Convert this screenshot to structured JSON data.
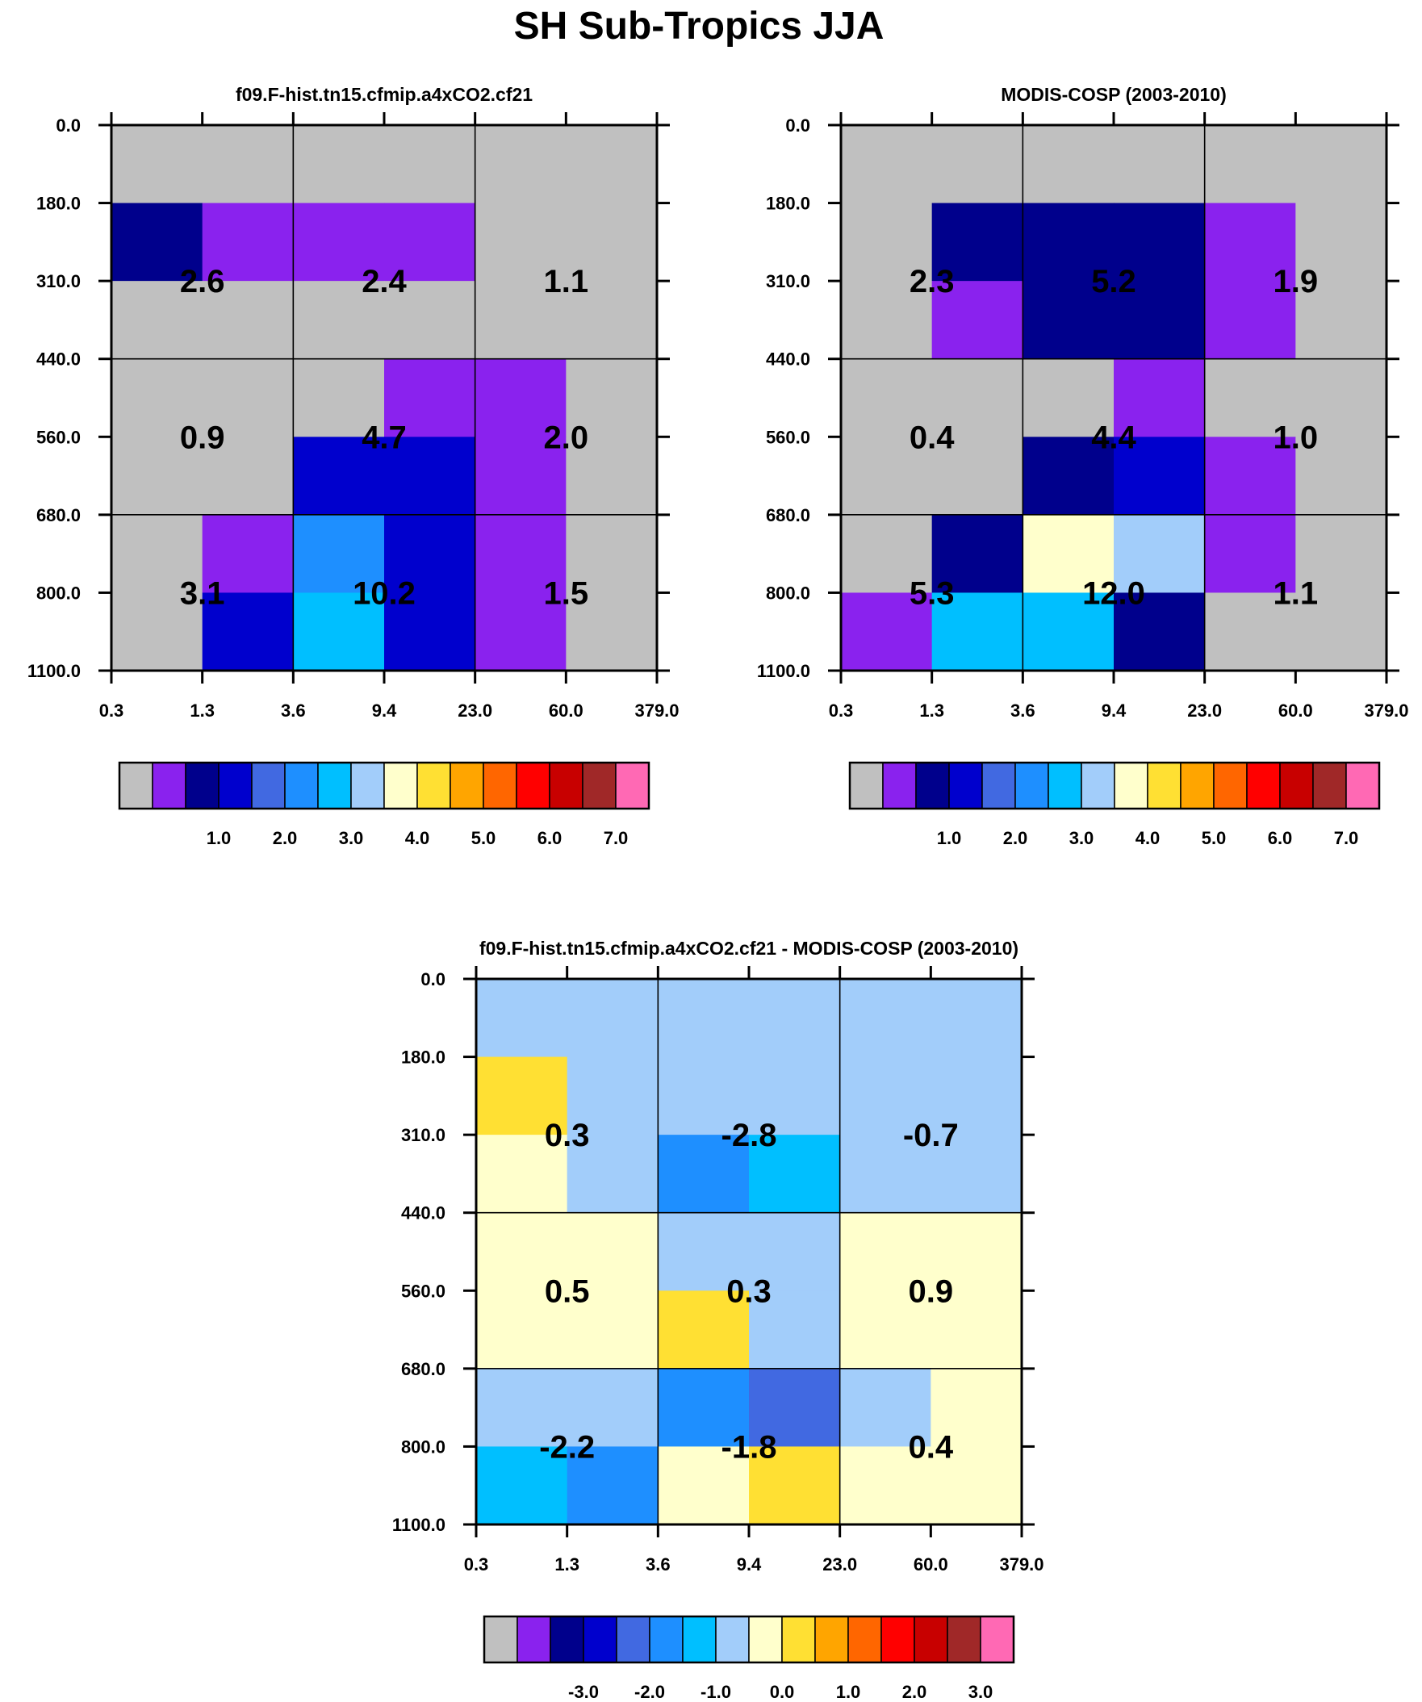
{
  "title": "SH Sub-Tropics JJA",
  "chart_data": [
    {
      "type": "heatmap",
      "title": "f09.F-hist.tn15.cfmip.a4xCO2.cf21",
      "x_ticks": [
        "0.3",
        "1.3",
        "3.6",
        "9.4",
        "23.0",
        "60.0",
        "379.0"
      ],
      "y_ticks": [
        "0.0",
        "180.0",
        "310.0",
        "440.0",
        "560.0",
        "680.0",
        "800.0",
        "1100.0"
      ],
      "cells": [
        [
          0,
          0,
          0,
          0,
          0,
          0
        ],
        [
          2,
          1,
          1,
          1,
          0,
          0
        ],
        [
          0,
          0,
          0,
          0,
          0,
          0
        ],
        [
          0,
          0,
          0,
          1,
          1,
          0
        ],
        [
          0,
          0,
          3,
          3,
          1,
          0
        ],
        [
          0,
          1,
          5,
          3,
          1,
          0
        ],
        [
          0,
          3,
          6,
          3,
          1,
          0
        ]
      ],
      "block_labels": [
        "2.6",
        "2.4",
        "1.1",
        "0.9",
        "4.7",
        "2.0",
        "3.1",
        "10.2",
        "1.5"
      ],
      "colorbar_colors": [
        "#c0c0c0",
        "#8a22ee",
        "#00008c",
        "#0000cd",
        "#4169e1",
        "#1e8fff",
        "#00bfff",
        "#a2cdfa",
        "#ffffcc",
        "#ffe033",
        "#ffa500",
        "#ff6600",
        "#ff0000",
        "#c80000",
        "#a02828",
        "#ff69b4"
      ],
      "colorbar_labels": [
        "1.0",
        "2.0",
        "3.0",
        "4.0",
        "5.0",
        "6.0",
        "7.0"
      ]
    },
    {
      "type": "heatmap",
      "title": "MODIS-COSP (2003-2010)",
      "x_ticks": [
        "0.3",
        "1.3",
        "3.6",
        "9.4",
        "23.0",
        "60.0",
        "379.0"
      ],
      "y_ticks": [
        "0.0",
        "180.0",
        "310.0",
        "440.0",
        "560.0",
        "680.0",
        "800.0",
        "1100.0"
      ],
      "cells": [
        [
          0,
          0,
          0,
          0,
          0,
          0
        ],
        [
          0,
          2,
          2,
          2,
          1,
          0
        ],
        [
          0,
          1,
          2,
          2,
          1,
          0
        ],
        [
          0,
          0,
          0,
          1,
          0,
          0
        ],
        [
          0,
          0,
          2,
          3,
          1,
          0
        ],
        [
          0,
          2,
          8,
          7,
          1,
          0
        ],
        [
          1,
          6,
          6,
          2,
          0,
          0
        ]
      ],
      "block_labels": [
        "2.3",
        "5.2",
        "1.9",
        "0.4",
        "4.4",
        "1.0",
        "5.3",
        "12.0",
        "1.1"
      ],
      "colorbar_colors": [
        "#c0c0c0",
        "#8a22ee",
        "#00008c",
        "#0000cd",
        "#4169e1",
        "#1e8fff",
        "#00bfff",
        "#a2cdfa",
        "#ffffcc",
        "#ffe033",
        "#ffa500",
        "#ff6600",
        "#ff0000",
        "#c80000",
        "#a02828",
        "#ff69b4"
      ],
      "colorbar_labels": [
        "1.0",
        "2.0",
        "3.0",
        "4.0",
        "5.0",
        "6.0",
        "7.0"
      ]
    },
    {
      "type": "heatmap",
      "title": "f09.F-hist.tn15.cfmip.a4xCO2.cf21 - MODIS-COSP (2003-2010)",
      "x_ticks": [
        "0.3",
        "1.3",
        "3.6",
        "9.4",
        "23.0",
        "60.0",
        "379.0"
      ],
      "y_ticks": [
        "0.0",
        "180.0",
        "310.0",
        "440.0",
        "560.0",
        "680.0",
        "800.0",
        "1100.0"
      ],
      "cells": [
        [
          7,
          7,
          7,
          7,
          7,
          7
        ],
        [
          9,
          7,
          7,
          7,
          7,
          7
        ],
        [
          8,
          7,
          5,
          6,
          7,
          7
        ],
        [
          8,
          8,
          7,
          7,
          8,
          8
        ],
        [
          8,
          8,
          9,
          7,
          8,
          8
        ],
        [
          7,
          7,
          5,
          4,
          7,
          8
        ],
        [
          6,
          5,
          8,
          9,
          8,
          8
        ]
      ],
      "block_labels": [
        "0.3",
        "-2.8",
        "-0.7",
        "0.5",
        "0.3",
        "0.9",
        "-2.2",
        "-1.8",
        "0.4"
      ],
      "colorbar_colors": [
        "#c0c0c0",
        "#8a22ee",
        "#00008c",
        "#0000cd",
        "#4169e1",
        "#1e8fff",
        "#00bfff",
        "#a2cdfa",
        "#ffffcc",
        "#ffe033",
        "#ffa500",
        "#ff6600",
        "#ff0000",
        "#c80000",
        "#a02828",
        "#ff69b4"
      ],
      "colorbar_labels": [
        "-3.0",
        "-2.0",
        "-1.0",
        "0.0",
        "1.0",
        "2.0",
        "3.0"
      ]
    }
  ]
}
